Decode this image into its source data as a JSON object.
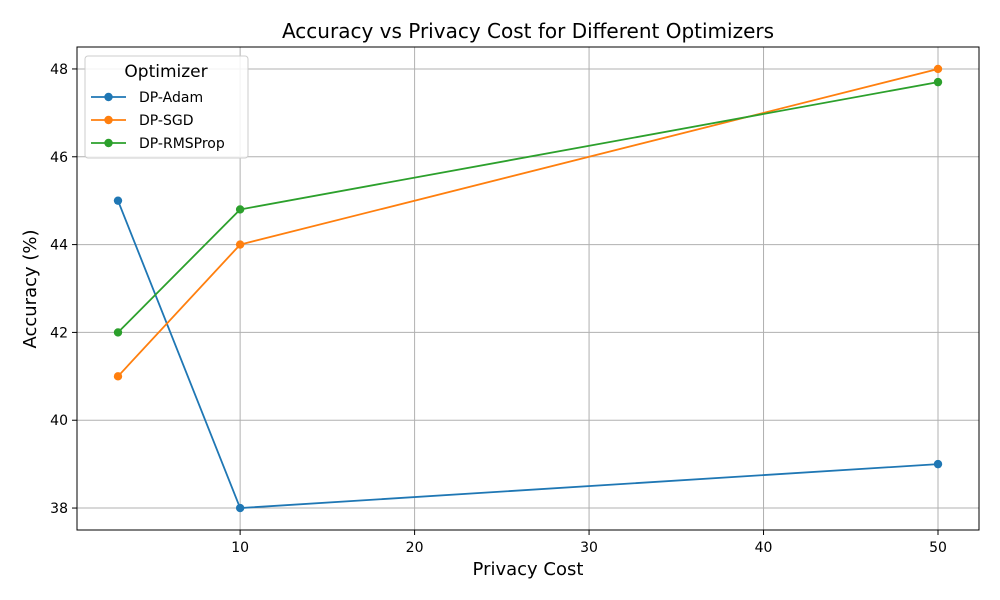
{
  "chart_data": {
    "type": "line",
    "title": "Accuracy vs Privacy Cost for Different Optimizers",
    "xlabel": "Privacy Cost",
    "ylabel": "Accuracy (%)",
    "x": [
      3,
      10,
      50
    ],
    "xlim": [
      0.65,
      52.35
    ],
    "ylim": [
      37.5,
      48.5
    ],
    "xticks": [
      10,
      20,
      30,
      40,
      50
    ],
    "yticks": [
      38,
      40,
      42,
      44,
      46,
      48
    ],
    "grid": true,
    "legend": {
      "title": "Optimizer",
      "placement": "top-left"
    },
    "series": [
      {
        "name": "DP-Adam",
        "color": "#1f77b4",
        "values": [
          45,
          38,
          39
        ]
      },
      {
        "name": "DP-SGD",
        "color": "#ff7f0e",
        "values": [
          41,
          44,
          48
        ]
      },
      {
        "name": "DP-RMSProp",
        "color": "#2ca02c",
        "values": [
          42,
          44.8,
          47.7
        ]
      }
    ]
  }
}
